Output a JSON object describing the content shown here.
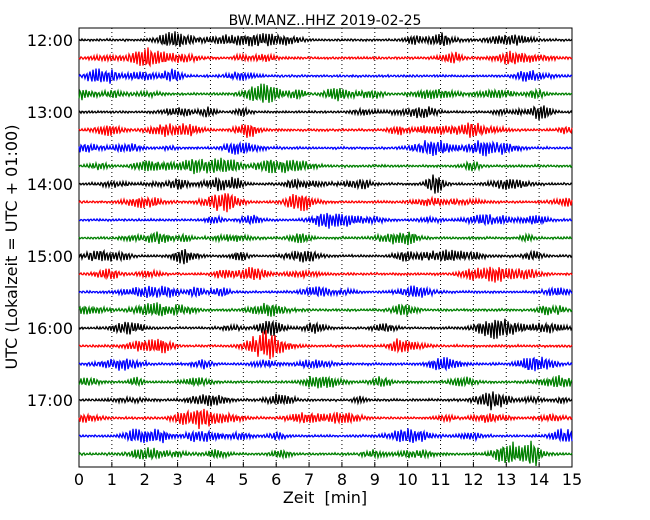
{
  "chart_data": {
    "type": "line",
    "title": "BW.MANZ..HHZ 2019-02-25",
    "xlabel": "Zeit  [min]",
    "ylabel": "UTC (Lokalzeit = UTC + 01:00)",
    "xlim": [
      0,
      15
    ],
    "x_ticks": [
      "0",
      "1",
      "2",
      "3",
      "4",
      "5",
      "6",
      "7",
      "8",
      "9",
      "10",
      "11",
      "12",
      "13",
      "14",
      "15"
    ],
    "y_ticks": [
      "12:00",
      "13:00",
      "14:00",
      "15:00",
      "16:00",
      "17:00"
    ],
    "grid": "vertical dotted",
    "row_interval_minutes": 15,
    "row_colors": [
      "#000000",
      "#ff0000",
      "#0000ff",
      "#008000"
    ],
    "rows": [
      {
        "start": "12:00"
      },
      {
        "start": "12:15"
      },
      {
        "start": "12:30"
      },
      {
        "start": "12:45"
      },
      {
        "start": "13:00"
      },
      {
        "start": "13:15"
      },
      {
        "start": "13:30"
      },
      {
        "start": "13:45"
      },
      {
        "start": "14:00"
      },
      {
        "start": "14:15"
      },
      {
        "start": "14:30"
      },
      {
        "start": "14:45"
      },
      {
        "start": "15:00"
      },
      {
        "start": "15:15"
      },
      {
        "start": "15:30"
      },
      {
        "start": "15:45"
      },
      {
        "start": "16:00"
      },
      {
        "start": "16:15"
      },
      {
        "start": "16:30"
      },
      {
        "start": "16:45"
      },
      {
        "start": "17:00"
      },
      {
        "start": "17:15"
      },
      {
        "start": "17:30"
      },
      {
        "start": "17:45"
      }
    ]
  }
}
